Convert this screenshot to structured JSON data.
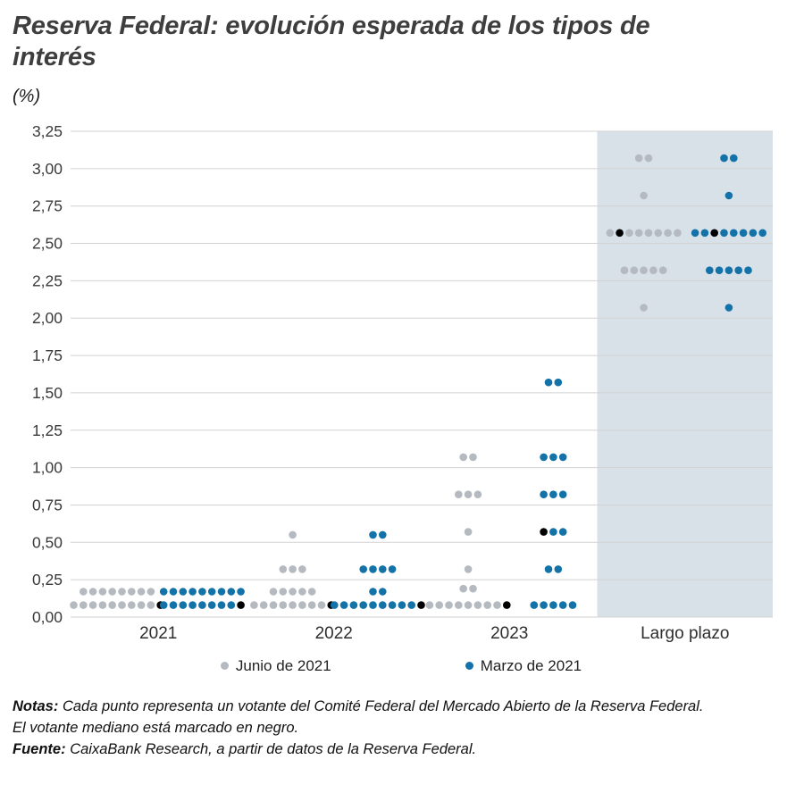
{
  "header": {
    "title": "Reserva Federal: evolución esperada de los tipos de interés",
    "unit": "(%)"
  },
  "chart_data": {
    "type": "scatter",
    "title": "Reserva Federal: evolución esperada de los tipos de interés",
    "ylabel": "(%)",
    "ylim": [
      0,
      3.25
    ],
    "grid": true,
    "legend_position": "bottom",
    "categories": [
      "2021",
      "2022",
      "2023",
      "Largo plazo"
    ],
    "shaded_category": "Largo plazo",
    "colors": {
      "shade": "#d8e1e8",
      "grid": "#d2d2d2",
      "median": "#000000"
    },
    "yticks": [
      {
        "value": 0,
        "label": "0,00"
      },
      {
        "value": 0.25,
        "label": "0,25"
      },
      {
        "value": 0.5,
        "label": "0,50"
      },
      {
        "value": 0.75,
        "label": "0,75"
      },
      {
        "value": 1,
        "label": "1,00"
      },
      {
        "value": 1.25,
        "label": "1,25"
      },
      {
        "value": 1.5,
        "label": "1,50"
      },
      {
        "value": 1.75,
        "label": "1,75"
      },
      {
        "value": 2,
        "label": "2,00"
      },
      {
        "value": 2.25,
        "label": "2,25"
      },
      {
        "value": 2.5,
        "label": "2,50"
      },
      {
        "value": 2.75,
        "label": "2,75"
      },
      {
        "value": 3,
        "label": "3,00"
      },
      {
        "value": 3.25,
        "label": "3,25"
      }
    ],
    "series": [
      {
        "name": "Junio de 2021",
        "color": "#b4bac0",
        "rows": {
          "2021": [
            {
              "v": 0.17,
              "n": 8
            },
            {
              "v": 0.08,
              "n": 10,
              "black": 9
            }
          ],
          "2022": [
            {
              "v": 0.55,
              "n": 1
            },
            {
              "v": 0.32,
              "n": 3
            },
            {
              "v": 0.17,
              "n": 5
            },
            {
              "v": 0.08,
              "n": 9,
              "black": 8
            }
          ],
          "2023": [
            {
              "v": 1.07,
              "n": 2
            },
            {
              "v": 0.82,
              "n": 3
            },
            {
              "v": 0.57,
              "n": 1
            },
            {
              "v": 0.32,
              "n": 1
            },
            {
              "v": 0.19,
              "n": 2
            },
            {
              "v": 0.08,
              "n": 9,
              "black": 8
            }
          ],
          "Largo plazo": [
            {
              "v": 3.07,
              "n": 2
            },
            {
              "v": 2.82,
              "n": 1
            },
            {
              "v": 2.57,
              "n": 8,
              "black": 1
            },
            {
              "v": 2.32,
              "n": 5
            },
            {
              "v": 2.07,
              "n": 1
            }
          ]
        }
      },
      {
        "name": "Marzo de 2021",
        "color": "#1372a8",
        "rows": {
          "2021": [
            {
              "v": 0.17,
              "n": 9
            },
            {
              "v": 0.08,
              "n": 9,
              "black": 8
            }
          ],
          "2022": [
            {
              "v": 0.55,
              "n": 2
            },
            {
              "v": 0.32,
              "n": 4
            },
            {
              "v": 0.17,
              "n": 2
            },
            {
              "v": 0.08,
              "n": 10,
              "black": 9
            }
          ],
          "2023": [
            {
              "v": 1.57,
              "n": 2
            },
            {
              "v": 1.07,
              "n": 3
            },
            {
              "v": 0.82,
              "n": 3
            },
            {
              "v": 0.57,
              "n": 3,
              "black": 0
            },
            {
              "v": 0.32,
              "n": 2
            },
            {
              "v": 0.08,
              "n": 5
            }
          ],
          "Largo plazo": [
            {
              "v": 3.07,
              "n": 2
            },
            {
              "v": 2.82,
              "n": 1
            },
            {
              "v": 2.57,
              "n": 8,
              "black": 2
            },
            {
              "v": 2.32,
              "n": 5
            },
            {
              "v": 2.07,
              "n": 1
            }
          ]
        }
      }
    ]
  },
  "notes": {
    "label": "Notas:",
    "text1": "Cada punto representa un votante del Comité Federal del Mercado Abierto de la Reserva Federal.",
    "text2": "El votante mediano está marcado en negro.",
    "source_label": "Fuente:",
    "source_text": "CaixaBank Research, a partir de datos de la Reserva Federal."
  }
}
